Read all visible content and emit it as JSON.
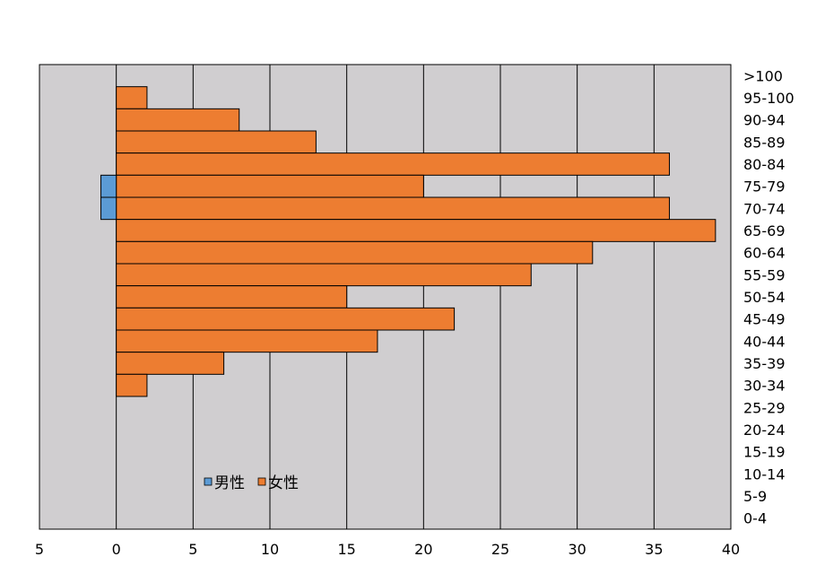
{
  "chart_data": {
    "type": "bar",
    "orientation": "horizontal",
    "categories": [
      ">100",
      "95-100",
      "90-94",
      "85-89",
      "80-84",
      "75-79",
      "70-74",
      "65-69",
      "60-64",
      "55-59",
      "50-54",
      "45-49",
      "40-44",
      "35-39",
      "30-34",
      "25-29",
      "20-24",
      "15-19",
      "10-14",
      "5-9",
      "0-4"
    ],
    "series": [
      {
        "name": "男性",
        "color": "#5b9bd5",
        "values": [
          0,
          0,
          0,
          0,
          0,
          1,
          1,
          0,
          0,
          0,
          0,
          0,
          0,
          0,
          0,
          0,
          0,
          0,
          0,
          0,
          0
        ]
      },
      {
        "name": "女性",
        "color": "#ed7d31",
        "values": [
          0,
          2,
          8,
          13,
          36,
          20,
          36,
          39,
          31,
          27,
          15,
          22,
          17,
          7,
          2,
          0,
          0,
          0,
          0,
          0,
          0
        ]
      }
    ],
    "male_direction": "left of zero",
    "xlim": [
      -5,
      40
    ],
    "x_ticks": [
      {
        "value": -5,
        "label": "5"
      },
      {
        "value": 0,
        "label": "0"
      },
      {
        "value": 5,
        "label": "5"
      },
      {
        "value": 10,
        "label": "10"
      },
      {
        "value": 15,
        "label": "15"
      },
      {
        "value": 20,
        "label": "20"
      },
      {
        "value": 25,
        "label": "25"
      },
      {
        "value": 30,
        "label": "30"
      },
      {
        "value": 35,
        "label": "35"
      },
      {
        "value": 40,
        "label": "40"
      }
    ],
    "title": "",
    "xlabel": "",
    "ylabel": "",
    "grid": "vertical",
    "legend_position": "bottom-left inside plot",
    "plot_background": "#d0ced0"
  }
}
